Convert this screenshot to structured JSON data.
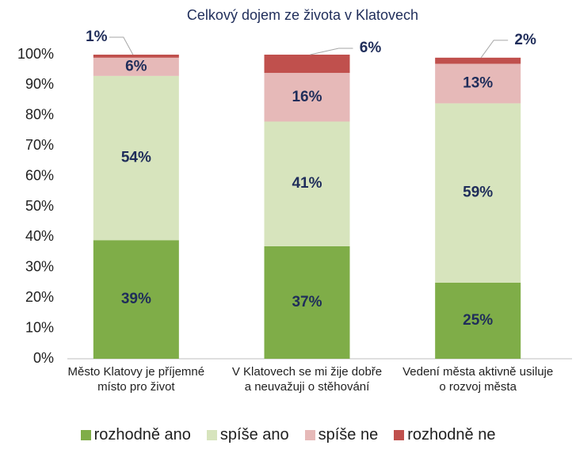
{
  "chart_data": {
    "type": "stacked_bar",
    "title": "Celkový dojem ze života v Klatovech",
    "categories": [
      "Město Klatovy je příjemné místo pro život",
      "V Klatovech se mi žije dobře a neuvažuji o stěhování",
      "Vedení města aktivně usiluje o rozvoj města"
    ],
    "series": [
      {
        "name": "rozhodně ano",
        "color": "#7fad48",
        "values": [
          39,
          37,
          25
        ],
        "value_labels": [
          "39%",
          "37%",
          "25%"
        ]
      },
      {
        "name": "spíše ano",
        "color": "#d7e4bd",
        "values": [
          54,
          41,
          59
        ],
        "value_labels": [
          "54%",
          "41%",
          "59%"
        ]
      },
      {
        "name": "spíše ne",
        "color": "#e6b9b8",
        "values": [
          6,
          16,
          13
        ],
        "value_labels": [
          "6%",
          "16%",
          "13%"
        ]
      },
      {
        "name": "rozhodně ne",
        "color": "#c0504d",
        "values": [
          1,
          6,
          2
        ],
        "value_labels": [
          "1%",
          "6%",
          "2%"
        ]
      }
    ],
    "ylim": [
      0,
      100
    ],
    "yticks": [
      {
        "value": 0,
        "label": "0%"
      },
      {
        "value": 10,
        "label": "10%"
      },
      {
        "value": 20,
        "label": "20%"
      },
      {
        "value": 30,
        "label": "30%"
      },
      {
        "value": 40,
        "label": "40%"
      },
      {
        "value": 50,
        "label": "50%"
      },
      {
        "value": 60,
        "label": "60%"
      },
      {
        "value": 70,
        "label": "70%"
      },
      {
        "value": 80,
        "label": "80%"
      },
      {
        "value": 90,
        "label": "90%"
      },
      {
        "value": 100,
        "label": "100%"
      }
    ],
    "grid": false,
    "legend": "bottom"
  }
}
